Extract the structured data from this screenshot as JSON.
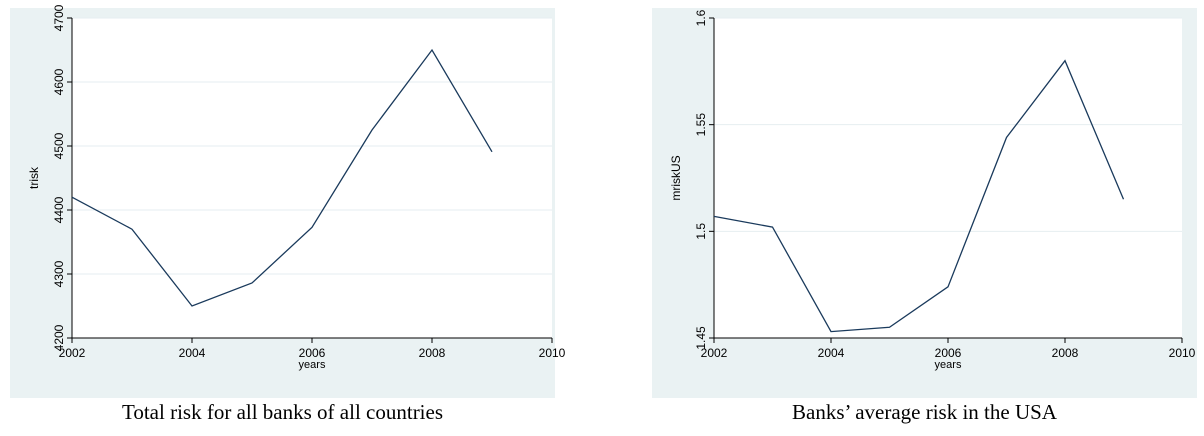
{
  "chart_data": [
    {
      "type": "line",
      "caption": "Total risk for all banks of all countries",
      "xlabel": "years",
      "ylabel": "trisk",
      "xlim": [
        2002,
        2010
      ],
      "ylim": [
        4200,
        4700
      ],
      "xticks": [
        "2002",
        "2004",
        "2006",
        "2008",
        "2010"
      ],
      "yticks": [
        "4200",
        "4300",
        "4400",
        "4500",
        "4600",
        "4700"
      ],
      "grid": true,
      "line_color": "#1a3a5c",
      "series": [
        {
          "x": [
            2002,
            2003,
            2004,
            2005,
            2006,
            2007,
            2008,
            2009
          ],
          "y": [
            4420,
            4370,
            4250,
            4286,
            4373,
            4525,
            4650,
            4491
          ]
        }
      ]
    },
    {
      "type": "line",
      "caption": "Banks’ average risk in the USA",
      "xlabel": "years",
      "ylabel": "mriskUS",
      "xlim": [
        2002,
        2010
      ],
      "ylim": [
        1.45,
        1.6
      ],
      "xticks": [
        "2002",
        "2004",
        "2006",
        "2008",
        "2010"
      ],
      "yticks": [
        "1.45",
        "1.5",
        "1.55",
        "1.6"
      ],
      "grid": true,
      "line_color": "#1a3a5c",
      "series": [
        {
          "x": [
            2002,
            2003,
            2004,
            2005,
            2006,
            2007,
            2008,
            2009
          ],
          "y": [
            1.507,
            1.502,
            1.453,
            1.455,
            1.474,
            1.544,
            1.58,
            1.515
          ]
        }
      ]
    }
  ]
}
